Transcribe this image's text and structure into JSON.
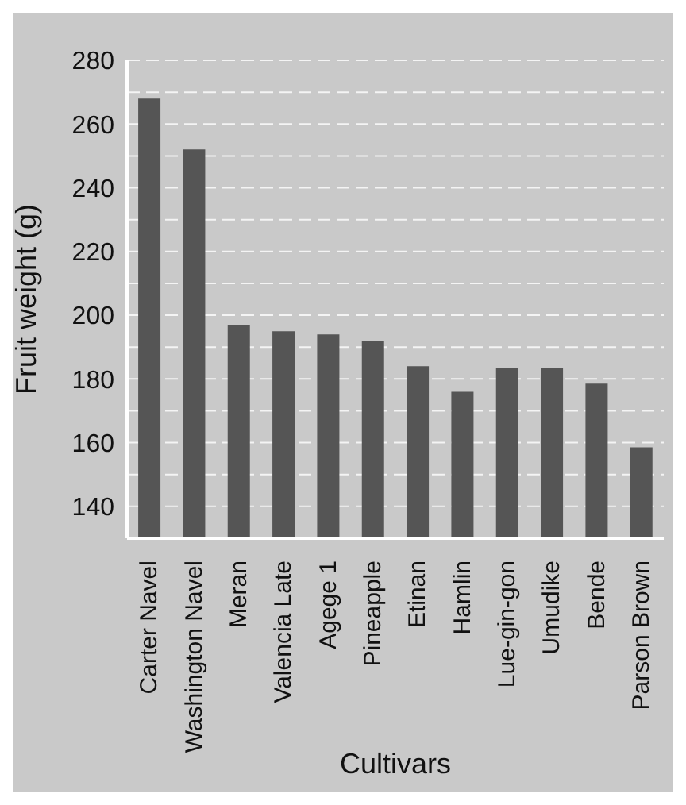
{
  "chart_data": {
    "type": "bar",
    "xlabel": "Cultivars",
    "ylabel": "Fruit weight (g)",
    "categories": [
      "Carter Navel",
      "Washington Navel",
      "Meran",
      "Valencia Late",
      "Agege 1",
      "Pineapple",
      "Etinan",
      "Hamlin",
      "Lue-gin-gon",
      "Umudike",
      "Bende",
      "Parson Brown"
    ],
    "values": [
      268,
      252,
      197,
      195,
      194,
      192,
      184,
      176,
      183.5,
      183.5,
      178.5,
      158.5
    ],
    "color": "#555555",
    "ylim": [
      130,
      280
    ],
    "yticks": [
      140,
      {
        "value": 150,
        "label": null
      },
      160,
      {
        "value": 170,
        "label": null
      },
      180,
      {
        "value": 190,
        "label": null
      },
      200,
      {
        "value": 210,
        "label": null
      },
      220,
      {
        "value": 230,
        "label": null
      },
      240,
      {
        "value": 250,
        "label": null
      },
      260,
      {
        "value": 270,
        "label": null
      },
      280
    ],
    "grid": "y"
  }
}
